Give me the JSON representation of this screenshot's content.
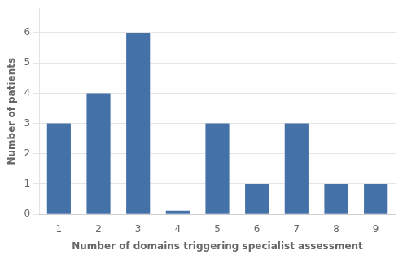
{
  "chart_data": {
    "type": "bar",
    "categories": [
      1,
      2,
      3,
      4,
      5,
      6,
      7,
      8,
      9
    ],
    "values": [
      3,
      4,
      6,
      0.12,
      3,
      1,
      3,
      1,
      1
    ],
    "color": "#4472a8",
    "xlabel": "Number of domains triggering specialist assessment",
    "ylabel": "Number of patients",
    "ylim": [
      0,
      6.8
    ],
    "yticks": [
      0,
      1,
      2,
      3,
      4,
      5,
      6
    ],
    "grid": true
  }
}
